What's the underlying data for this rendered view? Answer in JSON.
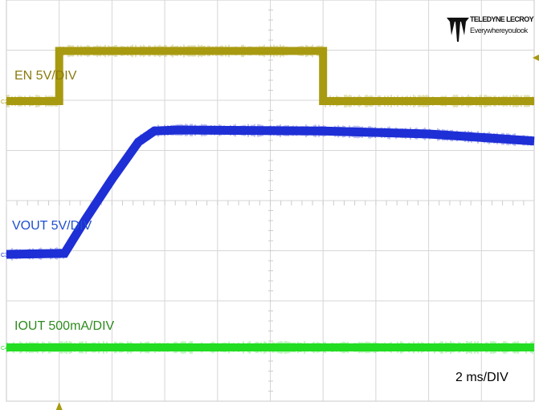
{
  "chart_data": {
    "type": "line",
    "title": "",
    "timebase_label": "2 ms/DIV",
    "x_unit": "ms",
    "xlim": [
      -2,
      18
    ],
    "grid": true,
    "series": [
      {
        "name": "EN 5V/DIV",
        "channel": "C2",
        "color": "#a89a10",
        "label_color": "#8a7a10",
        "volts_per_div": 5,
        "x": [
          -2,
          0,
          0,
          10,
          10,
          18
        ],
        "y": [
          0,
          0,
          5,
          5,
          0,
          0
        ]
      },
      {
        "name": "VOUT 5V/DIV",
        "channel": "C3",
        "color": "#1f2fd6",
        "label_color": "#1f4fd0",
        "volts_per_div": 5,
        "x": [
          -2,
          0.2,
          1.0,
          2.0,
          3.0,
          3.6,
          4.5,
          10,
          14,
          18
        ],
        "y": [
          0,
          0.1,
          3.5,
          7.5,
          11.2,
          12.3,
          12.4,
          12.3,
          12.0,
          11.3
        ]
      },
      {
        "name": "IOUT 500mA/DIV",
        "channel": "C4",
        "color": "#22dd22",
        "label_color": "#2e8b1e",
        "volts_per_div": 0.5,
        "x": [
          -2,
          18
        ],
        "y": [
          0,
          0
        ]
      }
    ]
  },
  "logo": {
    "brand": "TELEDYNE LECROY",
    "tagline": "Everywhereyoulook"
  }
}
